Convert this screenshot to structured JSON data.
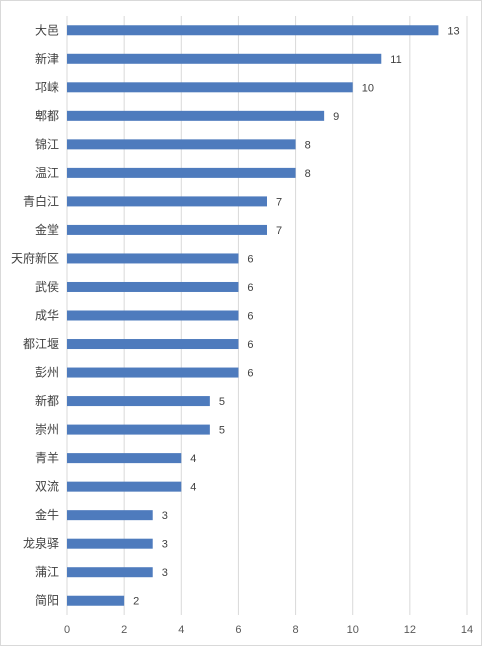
{
  "chart_data": {
    "type": "bar",
    "orientation": "horizontal",
    "title": "",
    "xlabel": "",
    "ylabel": "",
    "categories": [
      "大邑",
      "新津",
      "邛崃",
      "郫都",
      "锦江",
      "温江",
      "青白江",
      "金堂",
      "天府新区",
      "武侯",
      "成华",
      "都江堰",
      "彭州",
      "新都",
      "崇州",
      "青羊",
      "双流",
      "金牛",
      "龙泉驿",
      "蒲江",
      "简阳"
    ],
    "values": [
      13,
      11,
      10,
      9,
      8,
      8,
      7,
      7,
      6,
      6,
      6,
      6,
      6,
      5,
      5,
      4,
      4,
      3,
      3,
      3,
      2
    ],
    "xlim": [
      0,
      14
    ],
    "xticks": [
      "0",
      "2",
      "4",
      "6",
      "8",
      "10",
      "12",
      "14"
    ],
    "data_labels": true,
    "grid": "vertical",
    "legend": "none",
    "colors": {
      "bar": "#4e7bbd",
      "grid": "#d9d9d9",
      "text": "#404040"
    }
  }
}
